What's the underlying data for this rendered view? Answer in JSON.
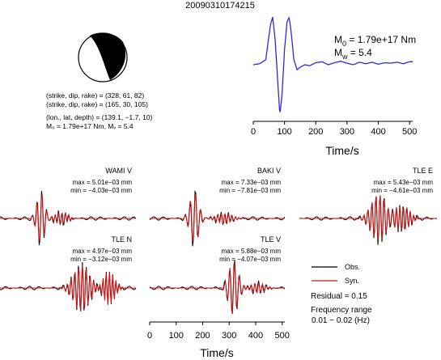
{
  "title": "20090310174215",
  "mechanism": {
    "planes": [
      "(strike, dip, rake) = (328, 61, 82)",
      "(strike, dip, rake) = (165, 30, 105)"
    ],
    "location": "(lon., lat, depth) = (139.1, −1.7, 10)",
    "moment": "M₀ = 1.79e+17 Nm, Mᵥ = 5.4"
  },
  "stf": {
    "m0_prefix": "M",
    "m0_sub": "0",
    "m0_value": " = 1.79e+17 Nm",
    "mw_prefix": "M",
    "mw_sub": "w",
    "mw_value": " = 5.4",
    "xlabel": "Time/s",
    "xticks": [
      "0",
      "100",
      "200",
      "300",
      "400",
      "500"
    ],
    "color": "#2a2ae0"
  },
  "stations": [
    {
      "label": "WAMI V",
      "max": "max = 5.01e−03 mm",
      "min": "min = −4.03e−03 mm"
    },
    {
      "label": "BAKI V",
      "max": "max = 7.33e−03 mm",
      "min": "min = −7.81e−03 mm"
    },
    {
      "label": "TLE E",
      "max": "max = 5.43e−03 mm",
      "min": "min = −4.61e−03 mm"
    },
    {
      "label": "TLE N",
      "max": "max = 4.97e−03 mm",
      "min": "min = −3.12e−03 mm"
    },
    {
      "label": "TLE V",
      "max": "max = 5.88e−03 mm",
      "min": "min = −4.07e−03 mm"
    }
  ],
  "legend": {
    "obs": "Obs.",
    "syn": "Syn.",
    "obs_color": "#000000",
    "syn_color": "#e01010"
  },
  "residual": "Residual = 0.15",
  "freq_label": "Frequency range",
  "freq_value": "0.01 − 0.02 (Hz)",
  "wave_axis": {
    "xlabel": "Time/s",
    "xticks": [
      "0",
      "100",
      "200",
      "300",
      "400",
      "500"
    ]
  },
  "chart_data": [
    {
      "type": "line",
      "name": "source time function",
      "x": [
        0,
        20,
        40,
        55,
        62,
        70,
        78,
        85,
        92,
        100,
        108,
        115,
        122,
        130,
        140,
        150,
        165,
        180,
        200,
        220,
        240,
        260,
        280,
        300,
        320,
        340,
        360,
        380,
        400,
        420,
        440,
        460,
        480,
        500
      ],
      "y": [
        0.0,
        0.02,
        0.1,
        0.8,
        0.95,
        0.5,
        -0.3,
        -1.0,
        -0.6,
        0.3,
        0.85,
        0.95,
        0.6,
        0.1,
        -0.1,
        -0.05,
        0.0,
        -0.02,
        0.04,
        0.06,
        0.0,
        0.04,
        0.07,
        0.03,
        0.0,
        0.05,
        0.02,
        0.05,
        0.01,
        0.04,
        0.03,
        0.05,
        0.02,
        0.06
      ],
      "xlim": [
        0,
        510
      ],
      "xlabel": "Time/s"
    },
    {
      "type": "line",
      "name": "waveforms",
      "x_range": [
        0,
        510
      ],
      "xlabel": "Time/s",
      "series": [
        {
          "name": "Obs.",
          "values": "5 station traces (WAMI V, BAKI V, TLE E, TLE N, TLE V)"
        },
        {
          "name": "Syn.",
          "values": "5 station traces (WAMI V, BAKI V, TLE E, TLE N, TLE V)"
        }
      ]
    }
  ]
}
